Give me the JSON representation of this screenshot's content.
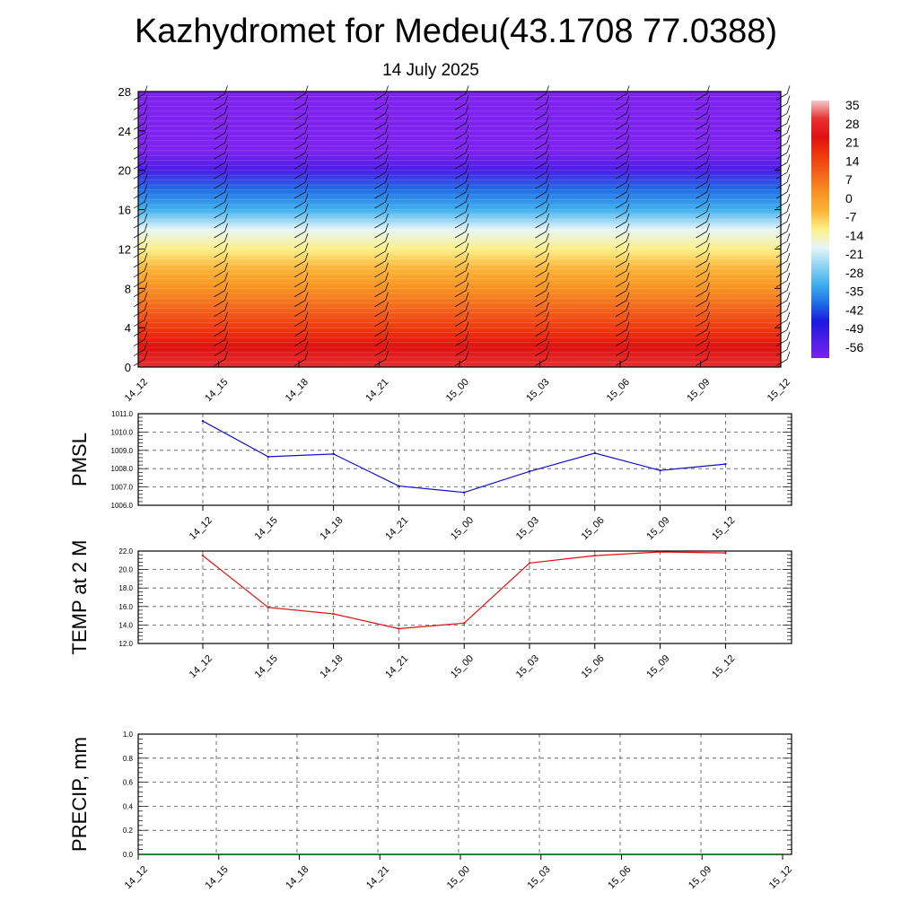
{
  "title": "Kazhydromet for Medeu(43.1708 77.0388)",
  "subtitle": "14 July 2025",
  "colorbar": {
    "labels": [
      "35",
      "28",
      "21",
      "14",
      "7",
      "0",
      "-7",
      "-14",
      "-21",
      "-28",
      "-35",
      "-42",
      "-49",
      "-56"
    ],
    "colors": [
      "#f4c8c8",
      "#e83030",
      "#e01010",
      "#ef3a0e",
      "#f3661c",
      "#f79222",
      "#fab437",
      "#fdf089",
      "#e6f6f8",
      "#8fd3f3",
      "#3fb0ee",
      "#1f6fe5",
      "#1a1ae0",
      "#4b1ee6",
      "#7d22ef"
    ]
  },
  "chart_data": [
    {
      "type": "heatmap",
      "name": "temperature_profile",
      "x": [
        "14_12",
        "14_15",
        "14_18",
        "14_21",
        "15_00",
        "15_03",
        "15_06",
        "15_09",
        "15_12"
      ],
      "y_ticks": [
        0,
        4,
        8,
        12,
        16,
        20,
        24,
        28
      ],
      "ylim": [
        0,
        28
      ],
      "levels": [
        0,
        2,
        4,
        6,
        8,
        10,
        12,
        14,
        16,
        18,
        20,
        22,
        24,
        26,
        28
      ],
      "values_by_level": [
        33,
        26,
        18,
        10,
        3,
        -4,
        -11,
        -20,
        -29,
        -40,
        -52,
        -58,
        -59,
        -60,
        -60
      ],
      "wind_barbs": true
    },
    {
      "type": "line",
      "name": "pmsl",
      "ylabel": "PMSL",
      "x": [
        "14_12",
        "14_15",
        "14_18",
        "14_21",
        "15_00",
        "15_03",
        "15_06",
        "15_09",
        "15_12"
      ],
      "values": [
        1010.6,
        1008.65,
        1008.8,
        1007.05,
        1006.7,
        1007.85,
        1008.85,
        1007.9,
        1008.25
      ],
      "ylim": [
        1006.0,
        1011.0
      ],
      "y_ticks": [
        "1006.0",
        "1007.0",
        "1008.0",
        "1009.0",
        "1010.0",
        "1011.0"
      ],
      "color": "#1010cc",
      "grid": true
    },
    {
      "type": "line",
      "name": "temp2m",
      "ylabel": "TEMP at 2 M",
      "x": [
        "14_12",
        "14_15",
        "14_18",
        "14_21",
        "15_00",
        "15_03",
        "15_06",
        "15_09",
        "15_12"
      ],
      "values": [
        21.5,
        15.9,
        15.2,
        13.6,
        14.2,
        20.7,
        21.5,
        21.9,
        21.8
      ],
      "ylim": [
        12.0,
        22.0
      ],
      "y_ticks": [
        "12.0",
        "14.0",
        "16.0",
        "18.0",
        "20.0",
        "22.0"
      ],
      "color": "#e01010",
      "grid": true
    },
    {
      "type": "line",
      "name": "precip",
      "ylabel": "PRECIP, mm",
      "x": [
        "14_12",
        "14_15",
        "14_18",
        "14_21",
        "15_00",
        "15_03",
        "15_06",
        "15_09",
        "15_12"
      ],
      "values": [
        0,
        0,
        0,
        0,
        0,
        0,
        0,
        0,
        0
      ],
      "ylim": [
        0.0,
        1.0
      ],
      "y_ticks": [
        "0.0",
        "0.2",
        "0.4",
        "0.6",
        "0.8",
        "1.0"
      ],
      "color": "#006400",
      "grid": true
    }
  ]
}
